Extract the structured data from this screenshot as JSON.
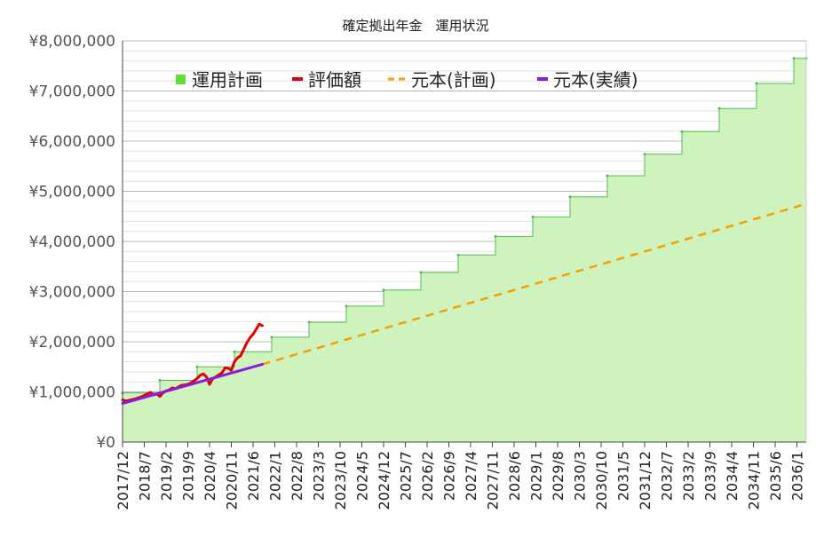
{
  "chart_data": {
    "type": "line",
    "title": "確定拠出年金　運用状況",
    "xlabel": "",
    "ylabel": "",
    "ylim": [
      0,
      8000000
    ],
    "yticks": [
      {
        "value": 0,
        "label": "¥0"
      },
      {
        "value": 1000000,
        "label": "¥1,000,000"
      },
      {
        "value": 2000000,
        "label": "¥2,000,000"
      },
      {
        "value": 3000000,
        "label": "¥3,000,000"
      },
      {
        "value": 4000000,
        "label": "¥4,000,000"
      },
      {
        "value": 5000000,
        "label": "¥5,000,000"
      },
      {
        "value": 6000000,
        "label": "¥6,000,000"
      },
      {
        "value": 7000000,
        "label": "¥7,000,000"
      },
      {
        "value": 8000000,
        "label": "¥8,000,000"
      }
    ],
    "xlim": [
      "2017/12",
      "2036/4"
    ],
    "xticks": [
      "2017/12",
      "2018/7",
      "2019/2",
      "2019/9",
      "2020/4",
      "2020/11",
      "2021/6",
      "2022/1",
      "2022/8",
      "2023/3",
      "2023/10",
      "2024/5",
      "2024/12",
      "2025/7",
      "2026/2",
      "2026/9",
      "2027/4",
      "2027/11",
      "2028/6",
      "2029/1",
      "2029/8",
      "2030/3",
      "2030/10",
      "2031/5",
      "2031/12",
      "2032/7",
      "2033/2",
      "2033/9",
      "2034/4",
      "2034/11",
      "2035/6",
      "2036/1"
    ],
    "grid": true,
    "legend_position": "top",
    "series": [
      {
        "name": "運用計画",
        "kind": "step-area",
        "color": "#66dd33",
        "fill": "#ccf2b8",
        "x": [
          "2017/12",
          "2018/12",
          "2019/12",
          "2020/12",
          "2021/12",
          "2022/12",
          "2023/12",
          "2024/12",
          "2025/12",
          "2026/12",
          "2027/12",
          "2028/12",
          "2029/12",
          "2030/12",
          "2031/12",
          "2032/12",
          "2033/12",
          "2034/12",
          "2035/12",
          "2036/4"
        ],
        "values": [
          980000,
          1230000,
          1500000,
          1800000,
          2090000,
          2390000,
          2710000,
          3030000,
          3380000,
          3730000,
          4100000,
          4490000,
          4890000,
          5310000,
          5740000,
          6190000,
          6650000,
          7150000,
          7650000,
          7650000
        ]
      },
      {
        "name": "評価額",
        "kind": "line",
        "color": "#e00000",
        "x": [
          "2017/12",
          "2018/1",
          "2018/2",
          "2018/3",
          "2018/4",
          "2018/5",
          "2018/6",
          "2018/7",
          "2018/8",
          "2018/9",
          "2018/10",
          "2018/11",
          "2018/12",
          "2019/1",
          "2019/2",
          "2019/3",
          "2019/4",
          "2019/5",
          "2019/6",
          "2019/7",
          "2019/8",
          "2019/9",
          "2019/10",
          "2019/11",
          "2019/12",
          "2020/1",
          "2020/2",
          "2020/3",
          "2020/4",
          "2020/5",
          "2020/6",
          "2020/7",
          "2020/8",
          "2020/9",
          "2020/10",
          "2020/11",
          "2020/12",
          "2021/1",
          "2021/2",
          "2021/3",
          "2021/4",
          "2021/5",
          "2021/6",
          "2021/7",
          "2021/8",
          "2021/9"
        ],
        "values": [
          840000,
          820000,
          830000,
          845000,
          860000,
          880000,
          900000,
          930000,
          960000,
          990000,
          940000,
          960000,
          910000,
          980000,
          1020000,
          1040000,
          1080000,
          1060000,
          1100000,
          1130000,
          1140000,
          1150000,
          1180000,
          1220000,
          1270000,
          1330000,
          1360000,
          1300000,
          1150000,
          1260000,
          1300000,
          1340000,
          1380000,
          1480000,
          1470000,
          1430000,
          1600000,
          1680000,
          1720000,
          1850000,
          1980000,
          2080000,
          2150000,
          2250000,
          2350000,
          2320000
        ]
      },
      {
        "name": "元本(計画)",
        "kind": "dashed-line",
        "color": "#f5a000",
        "x": [
          "2021/9",
          "2036/4"
        ],
        "values": [
          1550000,
          4750000
        ]
      },
      {
        "name": "元本(実績)",
        "kind": "line",
        "color": "#8a1be0",
        "x": [
          "2017/12",
          "2021/9"
        ],
        "values": [
          770000,
          1550000
        ]
      }
    ]
  }
}
